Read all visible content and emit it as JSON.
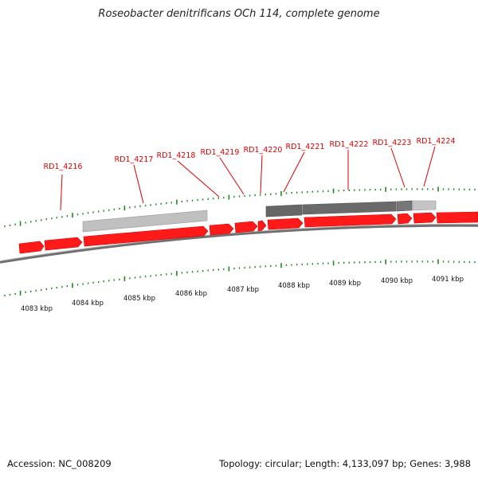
{
  "title": "Roseobacter denitrificans OCh 114, complete genome",
  "footer": {
    "accession": "Accession: NC_008209",
    "summary": "Topology: circular; Length: 4,133,097 bp; Genes: 3,988"
  },
  "colors": {
    "gene": "#ff0000",
    "gene_label": "#e00000",
    "tick": "#1a8a1a",
    "backbone": "#7a7a7a",
    "feature_light": "#bdbdbd",
    "feature_dark": "#646464"
  },
  "gene_labels": [
    "RD1_4216",
    "RD1_4217",
    "RD1_4218",
    "RD1_4219",
    "RD1_4220",
    "RD1_4221",
    "RD1_4222",
    "RD1_4223",
    "RD1_4224"
  ],
  "scale_labels": [
    "4083 kbp",
    "4084 kbp",
    "4085 kbp",
    "4086 kbp",
    "4087 kbp",
    "4088 kbp",
    "4089 kbp",
    "4090 kbp",
    "4091 kbp"
  ]
}
